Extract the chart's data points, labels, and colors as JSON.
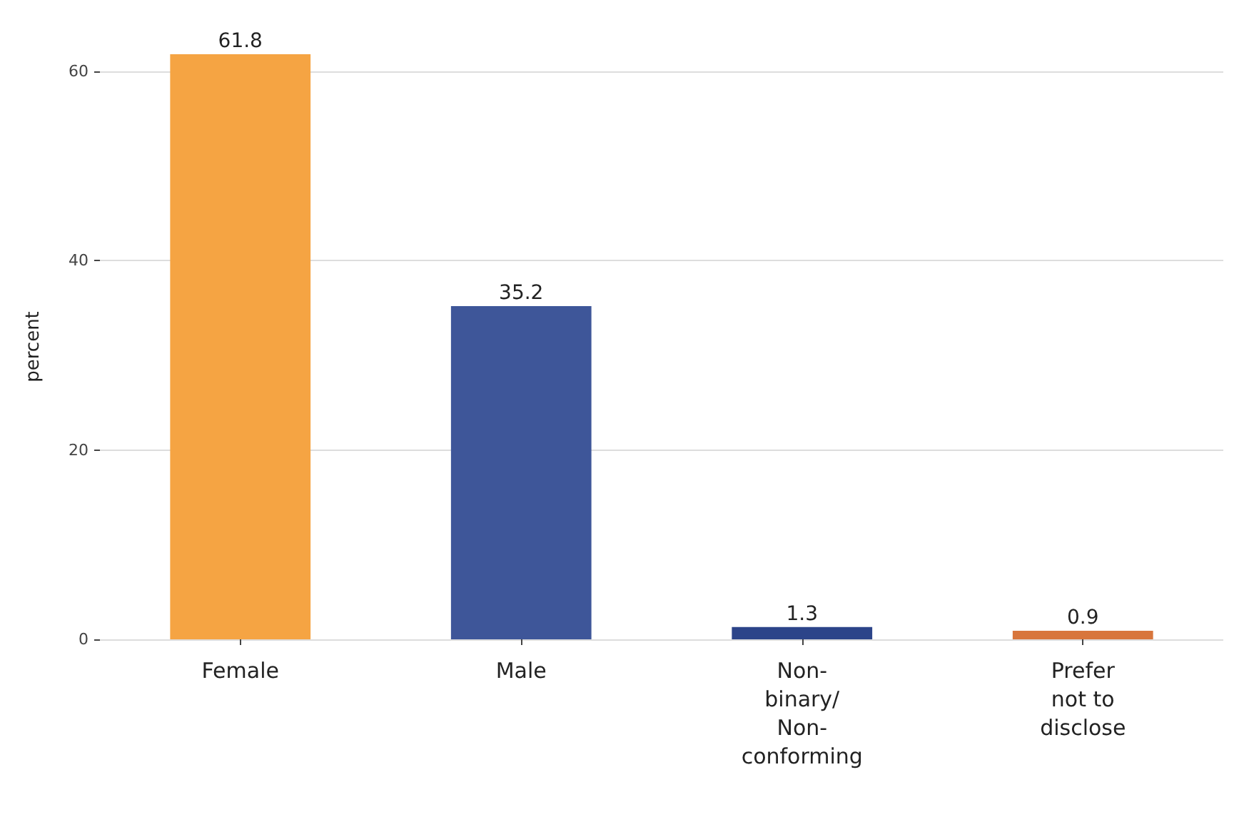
{
  "chart_data": {
    "type": "bar",
    "ylabel": "percent",
    "categories": [
      "Female",
      "Male",
      "Non-\nbinary/\nNon-\nconforming",
      "Prefer\nnot to\ndisclose"
    ],
    "values": [
      61.8,
      35.2,
      1.3,
      0.9
    ],
    "colors": [
      "#f5a443",
      "#3e5699",
      "#2c4489",
      "#d8763c"
    ],
    "ylim": [
      0,
      61.8
    ],
    "yticks": [
      0,
      20,
      40,
      60
    ],
    "grid": "y",
    "data_labels": true
  }
}
